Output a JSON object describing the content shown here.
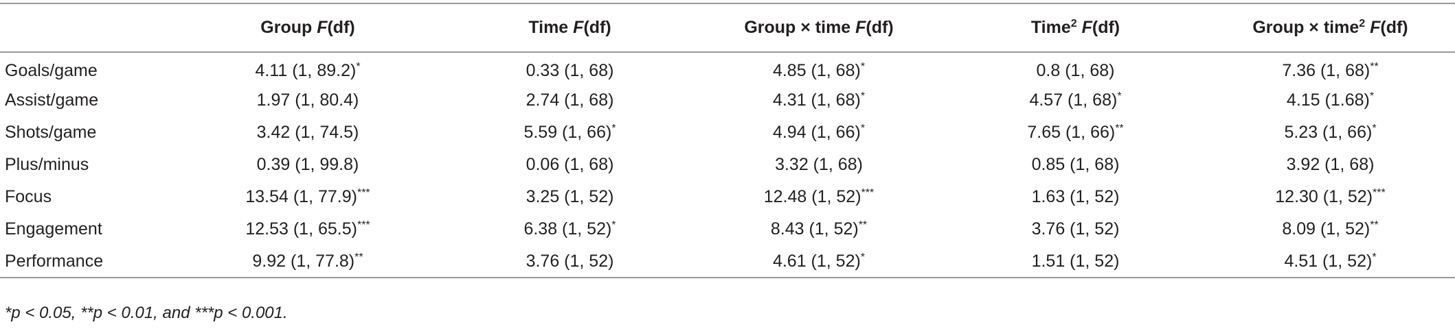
{
  "table": {
    "header": [
      [
        {
          "text": ""
        }
      ],
      [
        {
          "text": "Group"
        },
        {
          "text": " F",
          "style": "italic"
        },
        {
          "text": "(df)"
        }
      ],
      [
        {
          "text": "Time"
        },
        {
          "text": " F",
          "style": "italic"
        },
        {
          "text": "(df)"
        }
      ],
      [
        {
          "text": "Group × time"
        },
        {
          "text": " F",
          "style": "italic"
        },
        {
          "text": "(df)"
        }
      ],
      [
        {
          "text": "Time"
        },
        {
          "text": "2",
          "style": "sup"
        },
        {
          "text": " F",
          "style": "italic"
        },
        {
          "text": "(df)"
        }
      ],
      [
        {
          "text": "Group × time"
        },
        {
          "text": "2",
          "style": "sup"
        },
        {
          "text": " F",
          "style": "italic"
        },
        {
          "text": "(df)"
        }
      ]
    ],
    "rows": [
      {
        "label": "Goals/game",
        "cells": [
          {
            "text": "4.11 (1, 89.2)",
            "mark": "*"
          },
          {
            "text": "0.33 (1, 68)"
          },
          {
            "text": "4.85 (1, 68)",
            "mark": "*"
          },
          {
            "text": "0.8 (1, 68)"
          },
          {
            "text": "7.36 (1, 68)",
            "mark": "**"
          }
        ]
      },
      {
        "label": "Assist/game",
        "cells": [
          {
            "text": "1.97 (1, 80.4)"
          },
          {
            "text": "2.74 (1, 68)"
          },
          {
            "text": "4.31 (1, 68)",
            "mark": "*"
          },
          {
            "text": "4.57 (1, 68)",
            "mark": "*"
          },
          {
            "text": "4.15 (1.68)",
            "mark": "*"
          }
        ]
      },
      {
        "label": "Shots/game",
        "cells": [
          {
            "text": "3.42 (1, 74.5)"
          },
          {
            "text": "5.59 (1, 66)",
            "mark": "*"
          },
          {
            "text": "4.94 (1, 66)",
            "mark": "*"
          },
          {
            "text": "7.65 (1, 66)",
            "mark": "**"
          },
          {
            "text": "5.23 (1, 66)",
            "mark": "*"
          }
        ]
      },
      {
        "label": "Plus/minus",
        "cells": [
          {
            "text": "0.39 (1, 99.8)"
          },
          {
            "text": "0.06 (1, 68)"
          },
          {
            "text": "3.32 (1, 68)"
          },
          {
            "text": "0.85 (1, 68)"
          },
          {
            "text": "3.92 (1, 68)"
          }
        ]
      },
      {
        "label": "Focus",
        "cells": [
          {
            "text": "13.54 (1, 77.9)",
            "mark": "***"
          },
          {
            "text": "3.25 (1, 52)"
          },
          {
            "text": "12.48 (1, 52)",
            "mark": "***"
          },
          {
            "text": "1.63 (1, 52)"
          },
          {
            "text": "12.30 (1, 52)",
            "mark": "***"
          }
        ]
      },
      {
        "label": "Engagement",
        "cells": [
          {
            "text": "12.53 (1, 65.5)",
            "mark": "***"
          },
          {
            "text": "6.38 (1, 52)",
            "mark": "*"
          },
          {
            "text": "8.43 (1, 52)",
            "mark": "**"
          },
          {
            "text": "3.76 (1, 52)"
          },
          {
            "text": "8.09 (1, 52)",
            "mark": "**"
          }
        ]
      },
      {
        "label": "Performance",
        "cells": [
          {
            "text": "9.92 (1, 77.8)",
            "mark": "**"
          },
          {
            "text": "3.76 (1, 52)"
          },
          {
            "text": "4.61 (1, 52)",
            "mark": "*"
          },
          {
            "text": "1.51 (1, 52)"
          },
          {
            "text": "4.51 (1, 52)",
            "mark": "*"
          }
        ]
      }
    ],
    "footnote": "*p < 0.05, **p < 0.01, and ***p < 0.001."
  }
}
